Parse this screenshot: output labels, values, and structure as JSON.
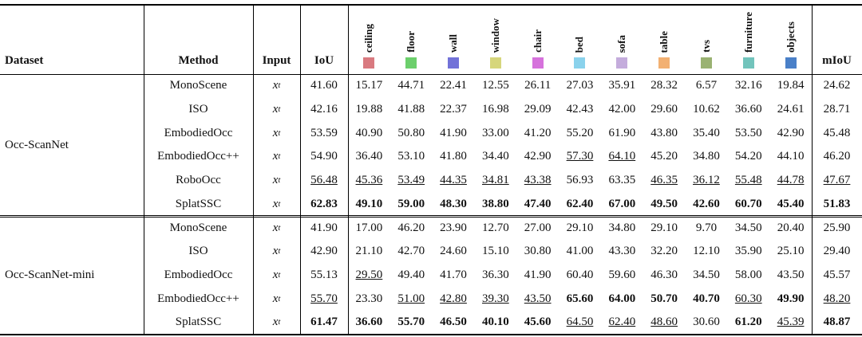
{
  "table": {
    "header": {
      "dataset": "Dataset",
      "method": "Method",
      "input": "Input",
      "iou": "IoU",
      "miou": "mIoU"
    },
    "classes": [
      {
        "name": "ceiling",
        "color": "#d97a80"
      },
      {
        "name": "floor",
        "color": "#6ccf6c"
      },
      {
        "name": "wall",
        "color": "#7272d8"
      },
      {
        "name": "window",
        "color": "#d6d67c"
      },
      {
        "name": "chair",
        "color": "#d672dc"
      },
      {
        "name": "bed",
        "color": "#8ad2ec"
      },
      {
        "name": "sofa",
        "color": "#c4acdc"
      },
      {
        "name": "table",
        "color": "#f2b072"
      },
      {
        "name": "tvs",
        "color": "#9ab272"
      },
      {
        "name": "furniture",
        "color": "#72c4bc"
      },
      {
        "name": "objects",
        "color": "#4a80c8"
      }
    ],
    "groups": [
      {
        "dataset": "Occ-ScanNet",
        "rows": [
          {
            "method": "MonoScene",
            "input": [
              "x",
              "t"
            ],
            "values": [
              "41.60",
              "15.17",
              "44.71",
              "22.41",
              "12.55",
              "26.11",
              "27.03",
              "35.91",
              "28.32",
              "6.57",
              "32.16",
              "19.84",
              "24.62"
            ],
            "bold": [],
            "underline": []
          },
          {
            "method": "ISO",
            "input": [
              "x",
              "t"
            ],
            "values": [
              "42.16",
              "19.88",
              "41.88",
              "22.37",
              "16.98",
              "29.09",
              "42.43",
              "42.00",
              "29.60",
              "10.62",
              "36.60",
              "24.61",
              "28.71"
            ],
            "bold": [],
            "underline": []
          },
          {
            "method": "EmbodiedOcc",
            "input": [
              "x",
              "t"
            ],
            "values": [
              "53.59",
              "40.90",
              "50.80",
              "41.90",
              "33.00",
              "41.20",
              "55.20",
              "61.90",
              "43.80",
              "35.40",
              "53.50",
              "42.90",
              "45.48"
            ],
            "bold": [],
            "underline": []
          },
          {
            "method": "EmbodiedOcc++",
            "input": [
              "x",
              "t"
            ],
            "values": [
              "54.90",
              "36.40",
              "53.10",
              "41.80",
              "34.40",
              "42.90",
              "57.30",
              "64.10",
              "45.20",
              "34.80",
              "54.20",
              "44.10",
              "46.20"
            ],
            "bold": [],
            "underline": [
              6,
              7
            ]
          },
          {
            "method": "RoboOcc",
            "input": [
              "x",
              "t"
            ],
            "values": [
              "56.48",
              "45.36",
              "53.49",
              "44.35",
              "34.81",
              "43.38",
              "56.93",
              "63.35",
              "46.35",
              "36.12",
              "55.48",
              "44.78",
              "47.67"
            ],
            "bold": [],
            "underline": [
              0,
              1,
              2,
              3,
              4,
              5,
              8,
              9,
              10,
              11,
              12
            ]
          },
          {
            "method": "SplatSSC",
            "input": [
              "x",
              "t"
            ],
            "values": [
              "62.83",
              "49.10",
              "59.00",
              "48.30",
              "38.80",
              "47.40",
              "62.40",
              "67.00",
              "49.50",
              "42.60",
              "60.70",
              "45.40",
              "51.83"
            ],
            "bold": [
              0,
              1,
              2,
              3,
              4,
              5,
              6,
              7,
              8,
              9,
              10,
              11,
              12
            ],
            "underline": []
          }
        ]
      },
      {
        "dataset": "Occ-ScanNet-mini",
        "rows": [
          {
            "method": "MonoScene",
            "input": [
              "x",
              "t"
            ],
            "values": [
              "41.90",
              "17.00",
              "46.20",
              "23.90",
              "12.70",
              "27.00",
              "29.10",
              "34.80",
              "29.10",
              "9.70",
              "34.50",
              "20.40",
              "25.90"
            ],
            "bold": [],
            "underline": []
          },
          {
            "method": "ISO",
            "input": [
              "x",
              "t"
            ],
            "values": [
              "42.90",
              "21.10",
              "42.70",
              "24.60",
              "15.10",
              "30.80",
              "41.00",
              "43.30",
              "32.20",
              "12.10",
              "35.90",
              "25.10",
              "29.40"
            ],
            "bold": [],
            "underline": []
          },
          {
            "method": "EmbodiedOcc",
            "input": [
              "x",
              "t"
            ],
            "values": [
              "55.13",
              "29.50",
              "49.40",
              "41.70",
              "36.30",
              "41.90",
              "60.40",
              "59.60",
              "46.30",
              "34.50",
              "58.00",
              "43.50",
              "45.57"
            ],
            "bold": [],
            "underline": [
              1
            ]
          },
          {
            "method": "EmbodiedOcc++",
            "input": [
              "x",
              "t"
            ],
            "values": [
              "55.70",
              "23.30",
              "51.00",
              "42.80",
              "39.30",
              "43.50",
              "65.60",
              "64.00",
              "50.70",
              "40.70",
              "60.30",
              "49.90",
              "48.20"
            ],
            "bold": [
              6,
              7,
              8,
              9,
              11
            ],
            "underline": [
              0,
              2,
              3,
              4,
              5,
              10,
              12
            ]
          },
          {
            "method": "SplatSSC",
            "input": [
              "x",
              "t"
            ],
            "values": [
              "61.47",
              "36.60",
              "55.70",
              "46.50",
              "40.10",
              "45.60",
              "64.50",
              "62.40",
              "48.60",
              "30.60",
              "61.20",
              "45.39",
              "48.87"
            ],
            "bold": [
              0,
              1,
              2,
              3,
              4,
              5,
              10,
              12
            ],
            "underline": [
              6,
              7,
              8,
              11
            ]
          }
        ]
      }
    ]
  }
}
